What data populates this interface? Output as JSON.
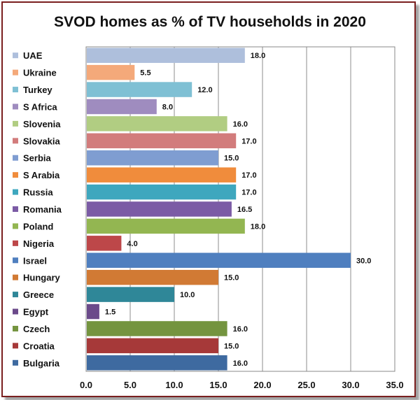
{
  "chart_data": {
    "type": "bar",
    "orientation": "horizontal",
    "title": "SVOD homes as % of TV households in 2020",
    "xlim": [
      0,
      35
    ],
    "x_ticks": [
      "0.0",
      "5.0",
      "10.0",
      "15.0",
      "20.0",
      "25.0",
      "30.0",
      "35.0"
    ],
    "grid": "vertical",
    "legend_position": "left",
    "categories": [
      "UAE",
      "Ukraine",
      "Turkey",
      "S Africa",
      "Slovenia",
      "Slovakia",
      "Serbia",
      "S Arabia",
      "Russia",
      "Romania",
      "Poland",
      "Nigeria",
      "Israel",
      "Hungary",
      "Greece",
      "Egypt",
      "Czech",
      "Croatia",
      "Bulgaria"
    ],
    "values": [
      18.0,
      5.5,
      12.0,
      8.0,
      16.0,
      17.0,
      15.0,
      17.0,
      17.0,
      16.5,
      18.0,
      4.0,
      30.0,
      15.0,
      10.0,
      1.5,
      16.0,
      15.0,
      16.0
    ],
    "value_labels": [
      "18.0",
      "5.5",
      "12.0",
      "8.0",
      "16.0",
      "17.0",
      "15.0",
      "17.0",
      "17.0",
      "16.5",
      "18.0",
      "4.0",
      "30.0",
      "15.0",
      "10.0",
      "1.5",
      "16.0",
      "15.0",
      "16.0"
    ],
    "colors": [
      "#aebfdc",
      "#f4a97a",
      "#7fc0d4",
      "#9f8cbf",
      "#b1cd82",
      "#d27c7c",
      "#7f9dd1",
      "#f08c3c",
      "#3ea7be",
      "#7b5ba5",
      "#93b651",
      "#bd4749",
      "#4f7fbf",
      "#d17a34",
      "#2f8798",
      "#6b4a8a",
      "#74943f",
      "#a63939",
      "#3e6aa0"
    ]
  }
}
